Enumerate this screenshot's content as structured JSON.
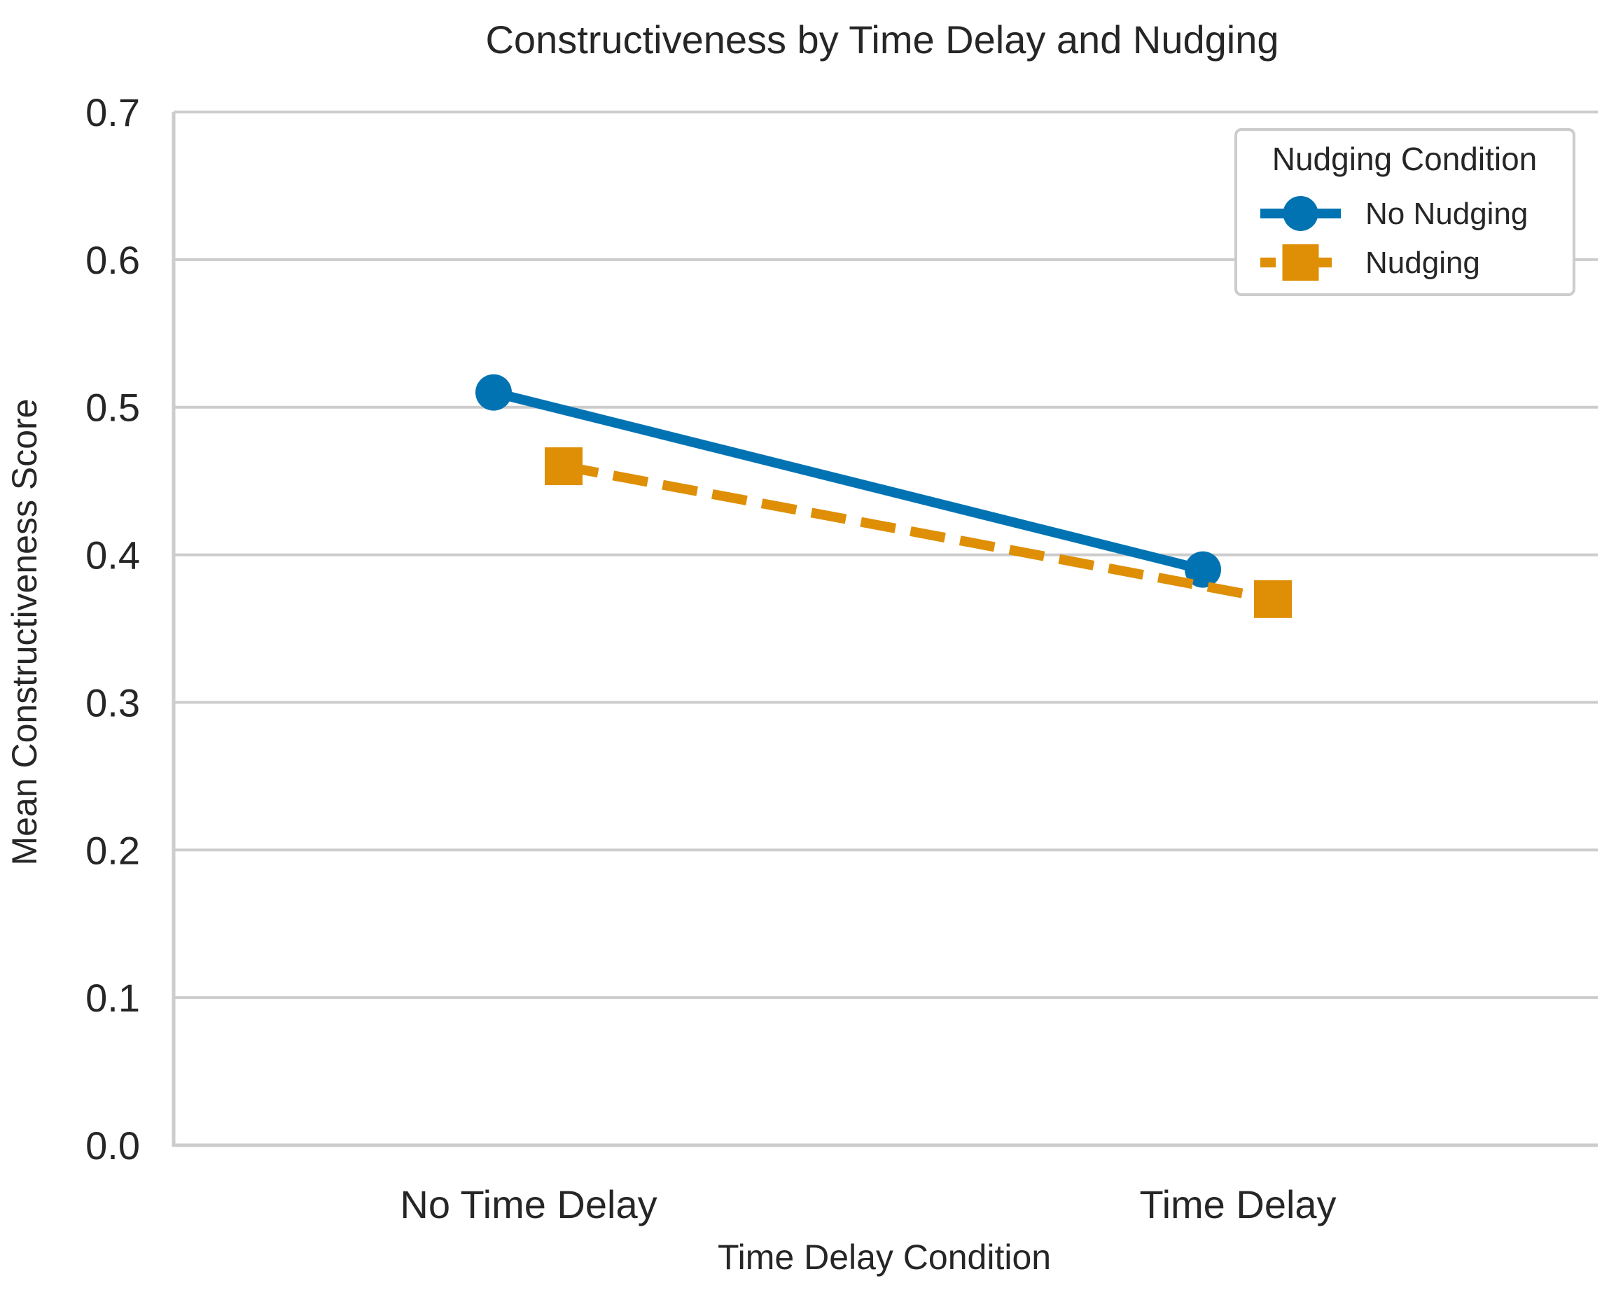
{
  "chart_data": {
    "type": "line",
    "title": "Constructiveness by Time Delay and Nudging",
    "xlabel": "Time Delay Condition",
    "ylabel": "Mean Constructiveness Score",
    "categories": [
      "No Time Delay",
      "Time Delay"
    ],
    "ylim": [
      0.0,
      0.7
    ],
    "yticks": [
      0.0,
      0.1,
      0.2,
      0.3,
      0.4,
      0.5,
      0.6,
      0.7
    ],
    "ytick_labels": [
      "0.0",
      "0.1",
      "0.2",
      "0.3",
      "0.4",
      "0.5",
      "0.6",
      "0.7"
    ],
    "grid": "horizontal",
    "legend": {
      "title": "Nudging Condition",
      "placement": "top-right"
    },
    "series": [
      {
        "name": "No Nudging",
        "values": [
          0.51,
          0.39
        ],
        "color": "#0173b2",
        "marker": "circle",
        "linestyle": "solid"
      },
      {
        "name": "Nudging",
        "values": [
          0.46,
          0.37
        ],
        "color": "#de8f05",
        "marker": "square",
        "linestyle": "dashed"
      }
    ]
  }
}
